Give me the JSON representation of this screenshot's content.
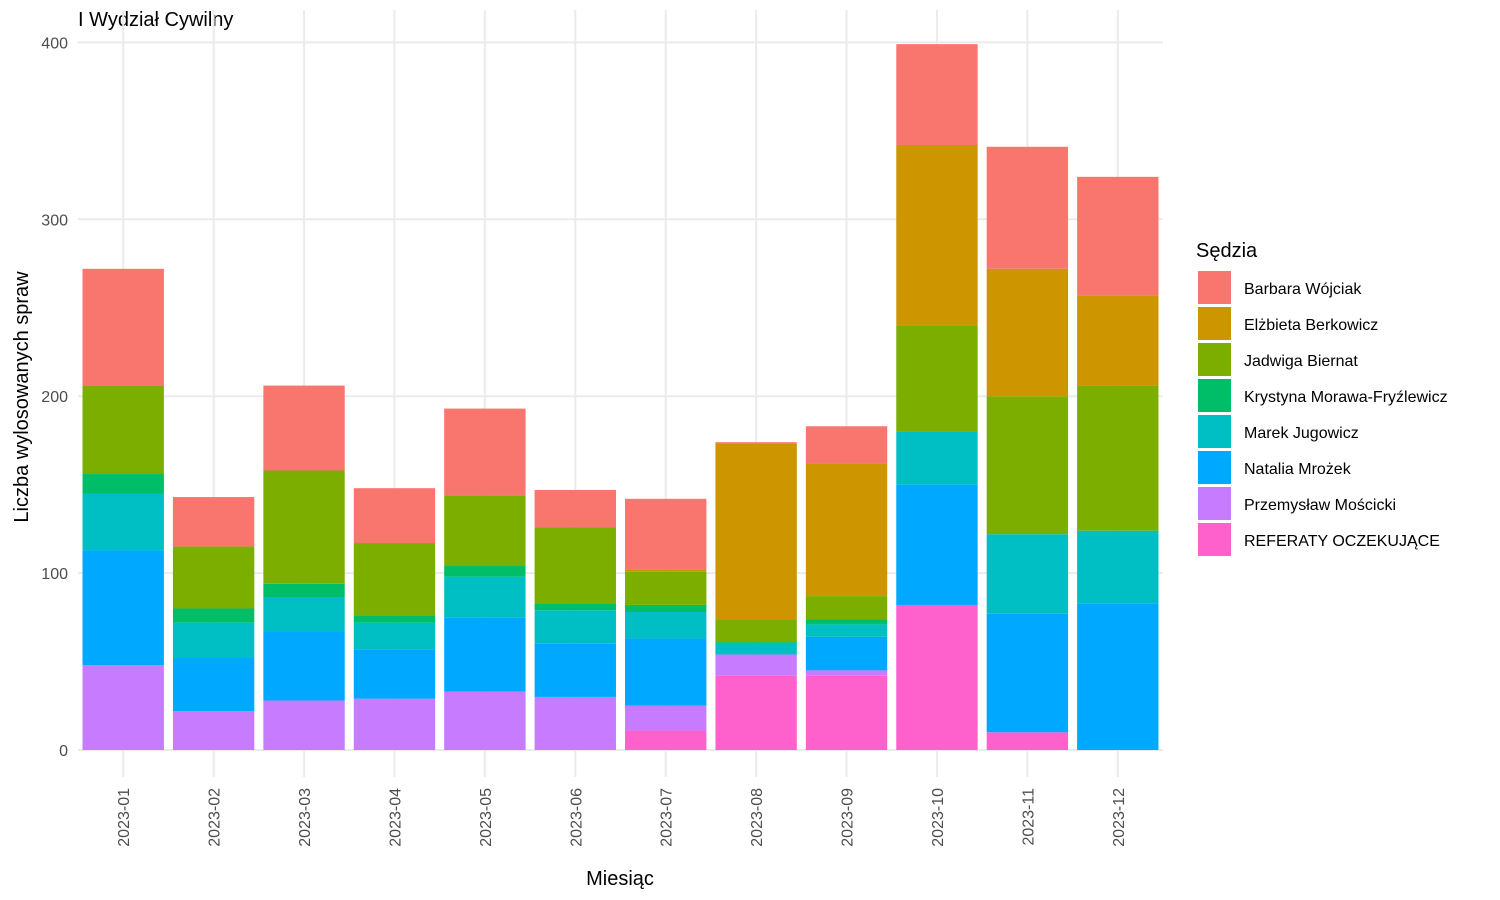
{
  "chart_data": {
    "type": "bar",
    "stacked": true,
    "title": "I Wydział Cywilny",
    "xlabel": "Miesiąc",
    "ylabel": "Liczba wylosowanych spraw",
    "ylim": [
      0,
      410
    ],
    "yticks": [
      0,
      100,
      200,
      300,
      400
    ],
    "grid": true,
    "legend_position": "right",
    "legend_title": "Sędzia",
    "categories": [
      "2023-01",
      "2023-02",
      "2023-03",
      "2023-04",
      "2023-05",
      "2023-06",
      "2023-07",
      "2023-08",
      "2023-09",
      "2023-10",
      "2023-11",
      "2023-12"
    ],
    "series": [
      {
        "name": "Barbara Wójciak",
        "color": "#F8766D",
        "values": [
          66,
          28,
          48,
          31,
          49,
          21,
          40,
          1,
          21,
          57,
          69,
          67
        ]
      },
      {
        "name": "Elżbieta Berkowicz",
        "color": "#CD9600",
        "values": [
          0,
          0,
          0,
          0,
          0,
          0,
          1,
          99,
          75,
          102,
          72,
          51
        ]
      },
      {
        "name": "Jadwiga Biernat",
        "color": "#7CAE00",
        "values": [
          50,
          35,
          64,
          41,
          40,
          43,
          19,
          13,
          13,
          60,
          78,
          82
        ]
      },
      {
        "name": "Krystyna Morawa-Fryźlewicz",
        "color": "#00BE67",
        "values": [
          11,
          8,
          8,
          4,
          6,
          4,
          4,
          1,
          3,
          0,
          0,
          0
        ]
      },
      {
        "name": "Marek Jugowicz",
        "color": "#00BFC4",
        "values": [
          32,
          20,
          19,
          15,
          23,
          19,
          15,
          6,
          7,
          30,
          45,
          41
        ]
      },
      {
        "name": "Natalia Mrożek",
        "color": "#00A9FF",
        "values": [
          65,
          30,
          39,
          28,
          42,
          30,
          38,
          0,
          19,
          68,
          67,
          83
        ]
      },
      {
        "name": "Przemysław Mościcki",
        "color": "#C77CFF",
        "values": [
          48,
          22,
          28,
          29,
          33,
          30,
          14,
          12,
          3,
          0,
          0,
          0
        ]
      },
      {
        "name": "REFERATY OCZEKUJĄCE",
        "color": "#FF61CC",
        "values": [
          0,
          0,
          0,
          0,
          0,
          0,
          11,
          42,
          42,
          82,
          10,
          0
        ]
      }
    ]
  }
}
